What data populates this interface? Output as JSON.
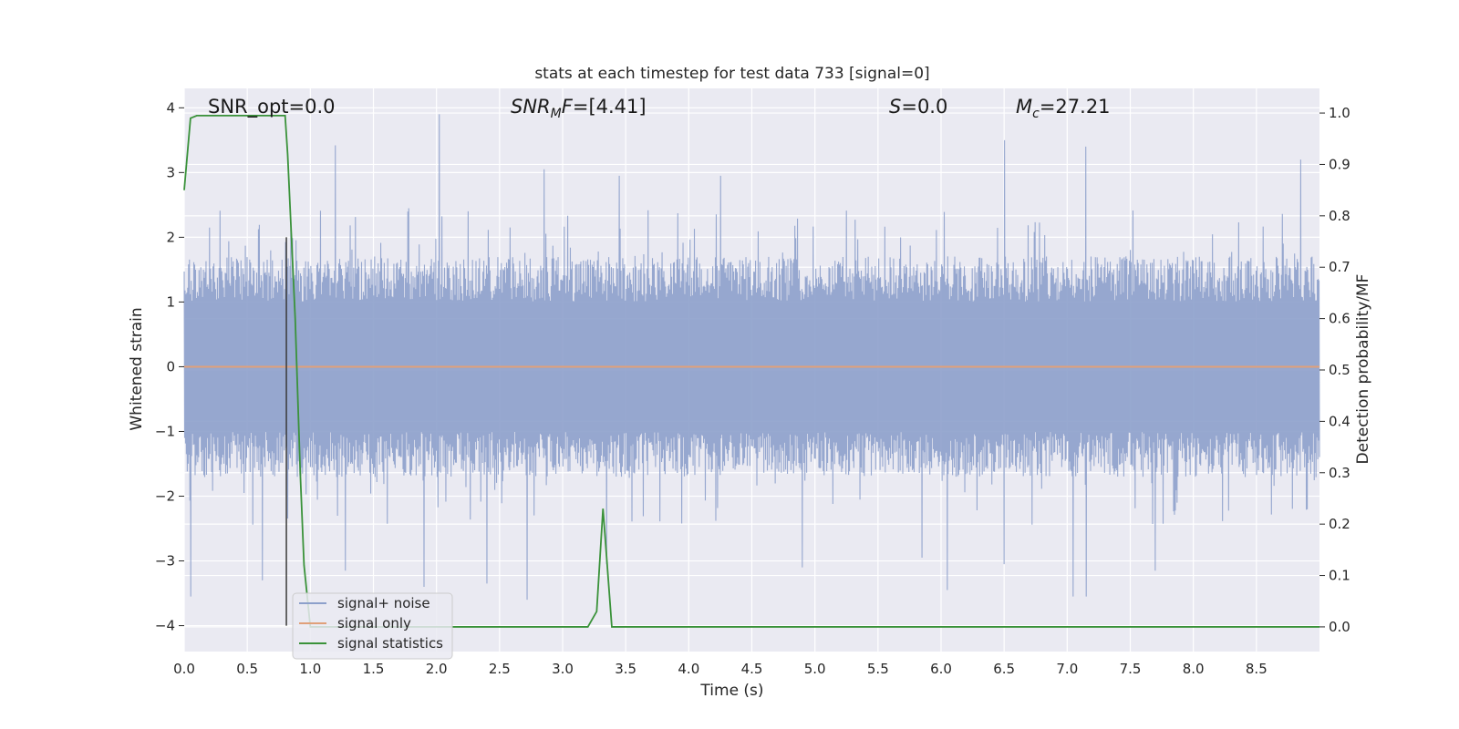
{
  "chart_data": {
    "type": "line",
    "title": "stats at each timestep for test data 733 [signal=0]",
    "xlabel": "Time (s)",
    "ylabel": "Whitened strain",
    "y2label": "Detection probability/MF",
    "xlim": [
      0.0,
      9.0
    ],
    "ylim": [
      -4.4,
      4.3
    ],
    "y2lim": [
      -0.048,
      1.048
    ],
    "x_ticks": [
      "0.0",
      "0.5",
      "1.0",
      "1.5",
      "2.0",
      "2.5",
      "3.0",
      "3.5",
      "4.0",
      "4.5",
      "5.0",
      "5.5",
      "6.0",
      "6.5",
      "7.0",
      "7.5",
      "8.0",
      "8.5"
    ],
    "y_ticks": [
      "4",
      "3",
      "2",
      "1",
      "0",
      "−1",
      "−2",
      "−3",
      "−4"
    ],
    "y2_ticks": [
      "1.0",
      "0.9",
      "0.8",
      "0.7",
      "0.6",
      "0.5",
      "0.4",
      "0.3",
      "0.2",
      "0.1",
      "0.0"
    ],
    "grid": true,
    "legend_position": "lower-left",
    "annotations": [
      {
        "id": "snr-opt",
        "text": "SNR_opt=0.0",
        "x": 0.2
      },
      {
        "id": "snr-mf",
        "text": "[4.41]",
        "x": 2.6
      },
      {
        "id": "s",
        "text": "=0.0",
        "x": 5.6
      },
      {
        "id": "mc",
        "text": "=27.21",
        "x": 6.6
      }
    ],
    "marker_line": {
      "x": 0.81,
      "y_from": -4.0,
      "y_to": 2.0
    },
    "series": [
      {
        "name": "signal+ noise",
        "color": "#8da0cb",
        "axis": "left",
        "kind": "noise",
        "x_range": [
          0.0,
          9.0
        ],
        "typical_amplitude": 1.55,
        "peaks": [
          {
            "x": 0.05,
            "y": -3.55
          },
          {
            "x": 0.62,
            "y": -3.3
          },
          {
            "x": 1.2,
            "y": 3.42
          },
          {
            "x": 1.28,
            "y": -3.15
          },
          {
            "x": 1.9,
            "y": -3.4
          },
          {
            "x": 2.02,
            "y": 3.9
          },
          {
            "x": 2.4,
            "y": -3.35
          },
          {
            "x": 2.72,
            "y": -3.6
          },
          {
            "x": 2.85,
            "y": 3.05
          },
          {
            "x": 3.35,
            "y": -3.05
          },
          {
            "x": 3.45,
            "y": 2.95
          },
          {
            "x": 4.25,
            "y": 2.95
          },
          {
            "x": 4.9,
            "y": -3.1
          },
          {
            "x": 5.85,
            "y": -2.95
          },
          {
            "x": 6.05,
            "y": -3.45
          },
          {
            "x": 6.5,
            "y": 3.5
          },
          {
            "x": 6.5,
            "y": -3.05
          },
          {
            "x": 7.05,
            "y": -3.55
          },
          {
            "x": 7.15,
            "y": 3.4
          },
          {
            "x": 7.15,
            "y": -3.55
          },
          {
            "x": 7.7,
            "y": -3.15
          },
          {
            "x": 8.85,
            "y": 3.2
          }
        ]
      },
      {
        "name": "signal only",
        "color": "#e0a07a",
        "axis": "left",
        "kind": "line",
        "x": [
          0.0,
          9.0
        ],
        "y": [
          0.0,
          0.0
        ]
      },
      {
        "name": "signal statistics",
        "color": "#3a923a",
        "axis": "right",
        "kind": "line",
        "x": [
          0.0,
          0.05,
          0.1,
          0.15,
          0.8,
          0.82,
          0.88,
          0.92,
          0.95,
          1.0,
          2.9,
          3.2,
          3.27,
          3.32,
          3.39,
          3.45,
          9.0
        ],
        "y": [
          0.85,
          0.99,
          0.995,
          0.995,
          0.995,
          0.92,
          0.6,
          0.3,
          0.12,
          0.0,
          0.0,
          0.0,
          0.03,
          0.23,
          0.0,
          0.0,
          0.0
        ]
      }
    ]
  }
}
